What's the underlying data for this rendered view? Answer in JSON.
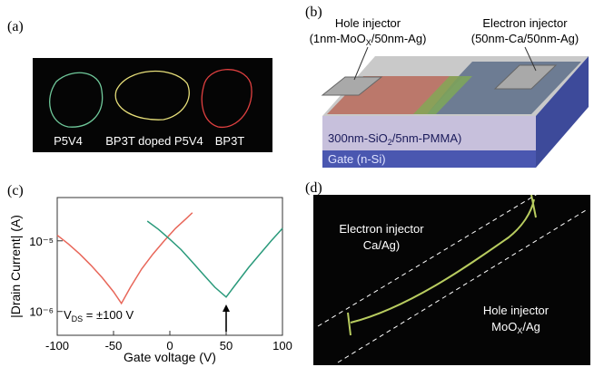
{
  "panels": {
    "a": {
      "label": "(a)",
      "captions": [
        "P5V4",
        "BP3T doped P5V4",
        "BP3T"
      ]
    },
    "b": {
      "label": "(b)",
      "hole_injector": "Hole injector",
      "hole_injector_material": [
        "(1nm-MoO",
        "X",
        "/50nm-Ag)"
      ],
      "electron_injector": "Electron injector",
      "electron_injector_material": "(50nm-Ca/50nm-Ag)",
      "dielectric": [
        "300nm-SiO",
        "2",
        "/5nm-PMMA)"
      ],
      "gate": "Gate (n-Si)"
    },
    "d": {
      "label": "(d)",
      "electron_injector": "Electron injector",
      "electron_injector_material": "Ca/Ag)",
      "hole_injector": "Hole injector",
      "hole_injector_material": [
        "MoO",
        "X",
        "/Ag"
      ]
    }
  },
  "chart_data": {
    "type": "line",
    "panel_label": "(c)",
    "xlabel": "Gate voltage (V)",
    "ylabel": "|Drain Current| (A)",
    "xlim": [
      -100,
      100
    ],
    "xticks": [
      -100,
      -50,
      0,
      50,
      100
    ],
    "ylim": [
      4.6e-07,
      4.1e-05
    ],
    "log_y": true,
    "yticks": [
      {
        "value": 1e-06,
        "label": "10⁻⁶"
      },
      {
        "value": 1e-05,
        "label": "10⁻⁵"
      }
    ],
    "series": [
      {
        "color": "#e8675a",
        "x": [
          -100,
          -90,
          -80,
          -70,
          -60,
          -50,
          -43,
          -35,
          -25,
          -15,
          -5,
          5,
          15,
          20
        ],
        "values": [
          1.2e-05,
          9e-06,
          6.5e-06,
          4.5e-06,
          3e-06,
          1.9e-06,
          1.3e-06,
          2.2e-06,
          4e-06,
          6.5e-06,
          1e-05,
          1.5e-05,
          2.1e-05,
          2.5e-05
        ]
      },
      {
        "color": "#2a9a7b",
        "x": [
          -20,
          -10,
          0,
          10,
          20,
          30,
          40,
          50,
          60,
          70,
          80,
          90,
          100
        ],
        "values": [
          1.9e-05,
          1.45e-05,
          1.05e-05,
          7.5e-06,
          5e-06,
          3.3e-06,
          2.2e-06,
          1.6e-06,
          2.6e-06,
          4.2e-06,
          6.5e-06,
          1e-05,
          1.5e-05
        ]
      }
    ],
    "annotation": [
      "V",
      "DS",
      " = ±100 V"
    ],
    "arrow_x": 50
  }
}
